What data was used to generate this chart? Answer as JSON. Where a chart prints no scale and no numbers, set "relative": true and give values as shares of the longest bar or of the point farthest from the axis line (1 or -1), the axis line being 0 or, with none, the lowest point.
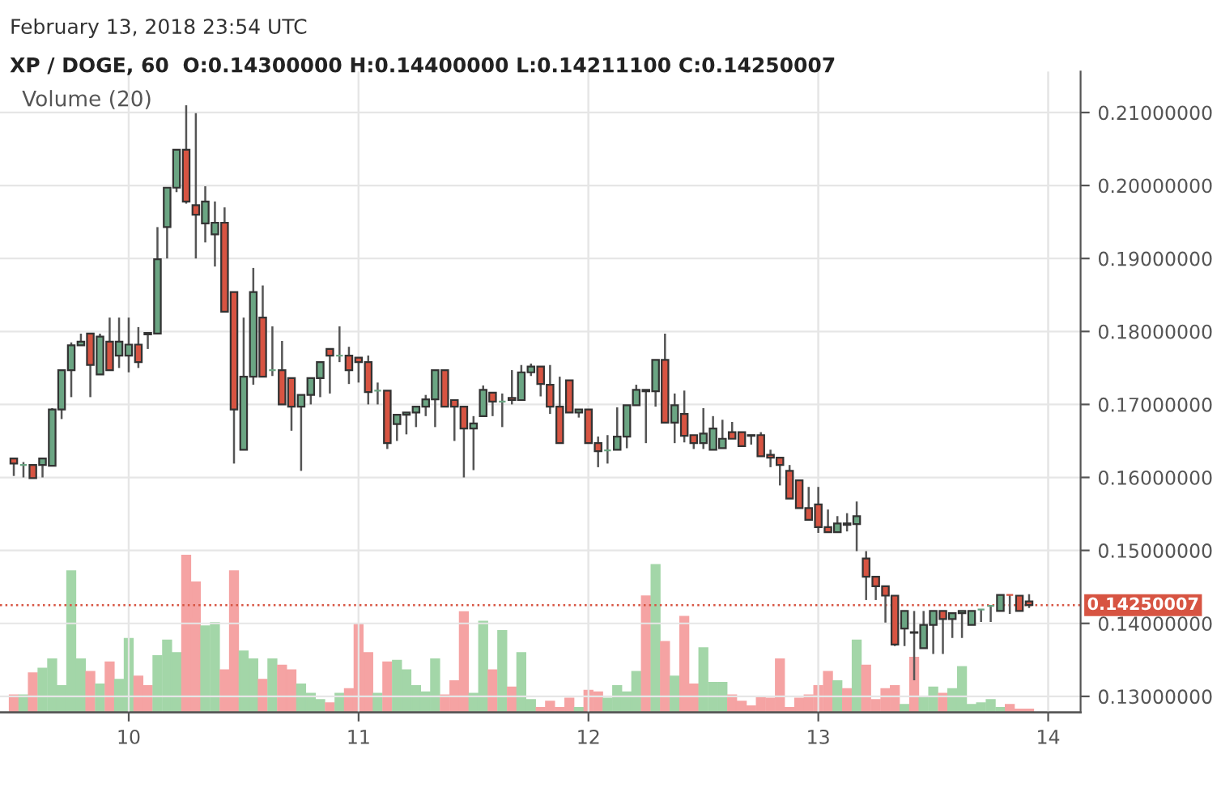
{
  "chart_data": [
    {
      "type": "candlestick",
      "title": "XP / DOGE, 60",
      "subtitle": "O:0.14300000 H:0.14400000 L:0.14211100 C:0.14250007",
      "annotations": [
        "February 13, 2018 23:54 UTC"
      ],
      "x": [
        9.5,
        9.542,
        9.583,
        9.625,
        9.667,
        9.708,
        9.75,
        9.792,
        9.833,
        9.875,
        9.917,
        9.958,
        10,
        10.042,
        10.083,
        10.125,
        10.167,
        10.208,
        10.25,
        10.292,
        10.333,
        10.375,
        10.417,
        10.458,
        10.5,
        10.542,
        10.583,
        10.625,
        10.667,
        10.708,
        10.75,
        10.792,
        10.833,
        10.875,
        10.917,
        10.958,
        11,
        11.042,
        11.083,
        11.125,
        11.167,
        11.208,
        11.25,
        11.292,
        11.333,
        11.375,
        11.417,
        11.458,
        11.5,
        11.542,
        11.583,
        11.625,
        11.667,
        11.708,
        11.75,
        11.792,
        11.833,
        11.875,
        11.917,
        11.958,
        12,
        12.042,
        12.083,
        12.125,
        12.167,
        12.208,
        12.25,
        12.292,
        12.333,
        12.375,
        12.417,
        12.458,
        12.5,
        12.542,
        12.583,
        12.625,
        12.667,
        12.708,
        12.75,
        12.792,
        12.833,
        12.875,
        12.917,
        12.958,
        13,
        13.042,
        13.083,
        13.125,
        13.167,
        13.208,
        13.25,
        13.292,
        13.333,
        13.375,
        13.417,
        13.458,
        13.5,
        13.542,
        13.583,
        13.625,
        13.667,
        13.708,
        13.75,
        13.792,
        13.833,
        13.875,
        13.917
      ],
      "ohlc": [
        [
          0.1626,
          0.1626,
          0.1602,
          0.1619
        ],
        [
          0.1617,
          0.1621,
          0.16,
          0.1617
        ],
        [
          0.1617,
          0.1617,
          0.1599,
          0.1599
        ],
        [
          0.1617,
          0.1626,
          0.16,
          0.1626
        ],
        [
          0.1616,
          0.1695,
          0.1616,
          0.1693
        ],
        [
          0.1693,
          0.1747,
          0.168,
          0.1747
        ],
        [
          0.1747,
          0.1785,
          0.171,
          0.1781
        ],
        [
          0.1781,
          0.1797,
          0.1781,
          0.1786
        ],
        [
          0.1797,
          0.1797,
          0.171,
          0.1754
        ],
        [
          0.1741,
          0.1797,
          0.1741,
          0.1793
        ],
        [
          0.1786,
          0.1819,
          0.1747,
          0.1747
        ],
        [
          0.1767,
          0.1819,
          0.175,
          0.1786
        ],
        [
          0.1767,
          0.1819,
          0.1744,
          0.1782
        ],
        [
          0.1782,
          0.1806,
          0.175,
          0.1758
        ],
        [
          0.1798,
          0.1798,
          0.1776,
          0.1796
        ],
        [
          0.1797,
          0.1943,
          0.1797,
          0.1899
        ],
        [
          0.1943,
          0.1997,
          0.19,
          0.1997
        ],
        [
          0.1997,
          0.2049,
          0.1991,
          0.2049
        ],
        [
          0.2049,
          0.211,
          0.1975,
          0.1978
        ],
        [
          0.1973,
          0.2099,
          0.19,
          0.196
        ],
        [
          0.1948,
          0.1999,
          0.1922,
          0.1978
        ],
        [
          0.1933,
          0.1978,
          0.1889,
          0.1949
        ],
        [
          0.1949,
          0.197,
          0.1827,
          0.1827
        ],
        [
          0.1854,
          0.1854,
          0.1619,
          0.1693
        ],
        [
          0.1638,
          0.1819,
          0.1638,
          0.1738
        ],
        [
          0.1738,
          0.1887,
          0.1727,
          0.1854
        ],
        [
          0.1819,
          0.1863,
          0.1738,
          0.1738
        ],
        [
          0.1747,
          0.1807,
          0.1739,
          0.1747
        ],
        [
          0.1747,
          0.1787,
          0.17,
          0.17
        ],
        [
          0.1736,
          0.1737,
          0.1664,
          0.1697
        ],
        [
          0.1697,
          0.1713,
          0.1609,
          0.1713
        ],
        [
          0.1713,
          0.1736,
          0.17,
          0.1736
        ],
        [
          0.1736,
          0.1758,
          0.171,
          0.1758
        ],
        [
          0.1776,
          0.1776,
          0.1715,
          0.1767
        ],
        [
          0.1767,
          0.1807,
          0.1758,
          0.1767
        ],
        [
          0.1767,
          0.1779,
          0.1728,
          0.1747
        ],
        [
          0.1764,
          0.1764,
          0.173,
          0.1758
        ],
        [
          0.1758,
          0.1767,
          0.17,
          0.1717
        ],
        [
          0.1719,
          0.173,
          0.17,
          0.1719
        ],
        [
          0.1719,
          0.1719,
          0.1639,
          0.1647
        ],
        [
          0.1673,
          0.1686,
          0.165,
          0.1686
        ],
        [
          0.1686,
          0.1689,
          0.1659,
          0.1689
        ],
        [
          0.1689,
          0.1697,
          0.1669,
          0.1697
        ],
        [
          0.1697,
          0.1713,
          0.1684,
          0.1707
        ],
        [
          0.1707,
          0.1747,
          0.1669,
          0.1747
        ],
        [
          0.1747,
          0.1747,
          0.1697,
          0.1697
        ],
        [
          0.1706,
          0.1706,
          0.165,
          0.1697
        ],
        [
          0.1697,
          0.1697,
          0.16,
          0.1667
        ],
        [
          0.1667,
          0.1684,
          0.161,
          0.1674
        ],
        [
          0.1684,
          0.1726,
          0.1684,
          0.172
        ],
        [
          0.1716,
          0.1716,
          0.1684,
          0.1704
        ],
        [
          0.1704,
          0.1715,
          0.1669,
          0.1704
        ],
        [
          0.1709,
          0.1747,
          0.17,
          0.1706
        ],
        [
          0.1706,
          0.1754,
          0.1706,
          0.1744
        ],
        [
          0.1744,
          0.1756,
          0.1739,
          0.1752
        ],
        [
          0.1752,
          0.1752,
          0.1711,
          0.1728
        ],
        [
          0.1727,
          0.1754,
          0.1687,
          0.1697
        ],
        [
          0.1697,
          0.1738,
          0.1647,
          0.1647
        ],
        [
          0.1733,
          0.1733,
          0.1689,
          0.1689
        ],
        [
          0.1689,
          0.1693,
          0.1682,
          0.1693
        ],
        [
          0.1693,
          0.1693,
          0.1647,
          0.1647
        ],
        [
          0.1647,
          0.1656,
          0.1614,
          0.1636
        ],
        [
          0.1637,
          0.1658,
          0.1619,
          0.1637
        ],
        [
          0.1638,
          0.1696,
          0.1638,
          0.1656
        ],
        [
          0.1656,
          0.1699,
          0.164,
          0.1699
        ],
        [
          0.1699,
          0.1727,
          0.1699,
          0.172
        ],
        [
          0.172,
          0.172,
          0.1647,
          0.1718
        ],
        [
          0.1718,
          0.1761,
          0.1697,
          0.1761
        ],
        [
          0.1761,
          0.1797,
          0.1675,
          0.1675
        ],
        [
          0.1675,
          0.1715,
          0.1647,
          0.1699
        ],
        [
          0.1687,
          0.1719,
          0.1648,
          0.1657
        ],
        [
          0.1658,
          0.1658,
          0.1639,
          0.1647
        ],
        [
          0.1647,
          0.1695,
          0.1639,
          0.166
        ],
        [
          0.1638,
          0.1684,
          0.1638,
          0.1667
        ],
        [
          0.164,
          0.1679,
          0.164,
          0.1653
        ],
        [
          0.1662,
          0.1676,
          0.1653,
          0.1653
        ],
        [
          0.1662,
          0.1662,
          0.1643,
          0.1643
        ],
        [
          0.1658,
          0.1658,
          0.1645,
          0.1657
        ],
        [
          0.1658,
          0.1662,
          0.1629,
          0.1629
        ],
        [
          0.1631,
          0.1638,
          0.1614,
          0.1627
        ],
        [
          0.1627,
          0.1627,
          0.1589,
          0.1617
        ],
        [
          0.1609,
          0.1617,
          0.1571,
          0.1571
        ],
        [
          0.1596,
          0.1596,
          0.1558,
          0.1558
        ],
        [
          0.1558,
          0.1587,
          0.1542,
          0.1542
        ],
        [
          0.1563,
          0.1587,
          0.1524,
          0.1532
        ],
        [
          0.1532,
          0.1556,
          0.1525,
          0.1525
        ],
        [
          0.1525,
          0.1547,
          0.1525,
          0.1537
        ],
        [
          0.1537,
          0.1551,
          0.1526,
          0.1535
        ],
        [
          0.1536,
          0.1567,
          0.1499,
          0.1547
        ],
        [
          0.1489,
          0.1499,
          0.1432,
          0.1464
        ],
        [
          0.1464,
          0.1464,
          0.1432,
          0.1451
        ],
        [
          0.1451,
          0.1451,
          0.1401,
          0.1438
        ],
        [
          0.1438,
          0.1438,
          0.1369,
          0.1371
        ],
        [
          0.1393,
          0.1417,
          0.1369,
          0.1417
        ],
        [
          0.1388,
          0.1417,
          0.1322,
          0.1387
        ],
        [
          0.1366,
          0.1417,
          0.1366,
          0.1398
        ],
        [
          0.1398,
          0.1417,
          0.1358,
          0.1417
        ],
        [
          0.1417,
          0.1417,
          0.1358,
          0.1406
        ],
        [
          0.1406,
          0.1414,
          0.138,
          0.1414
        ],
        [
          0.1414,
          0.1417,
          0.138,
          0.1417
        ],
        [
          0.1398,
          0.1417,
          0.1398,
          0.1417
        ],
        [
          0.1419,
          0.1419,
          0.1402,
          0.1419
        ],
        [
          0.1424,
          0.1424,
          0.1402,
          0.1424
        ],
        [
          0.1417,
          0.1439,
          0.1417,
          0.1439
        ],
        [
          0.1439,
          0.1439,
          0.1413,
          0.1439
        ],
        [
          0.1438,
          0.1438,
          0.1417,
          0.1417
        ],
        [
          0.143,
          0.144,
          0.14211,
          0.1425
        ]
      ],
      "colors": [
        "#d75442",
        "#6ba583",
        "#d75442",
        "#6ba583",
        "#6ba583",
        "#6ba583",
        "#6ba583",
        "#6ba583",
        "#d75442",
        "#6ba583",
        "#d75442",
        "#6ba583",
        "#6ba583",
        "#d75442",
        "#d75442",
        "#6ba583",
        "#6ba583",
        "#6ba583",
        "#d75442",
        "#d75442",
        "#6ba583",
        "#6ba583",
        "#d75442",
        "#d75442",
        "#6ba583",
        "#6ba583",
        "#d75442",
        "#6ba583",
        "#d75442",
        "#d75442",
        "#6ba583",
        "#6ba583",
        "#6ba583",
        "#d75442",
        "#6ba583",
        "#d75442",
        "#d75442",
        "#d75442",
        "#6ba583",
        "#d75442",
        "#6ba583",
        "#6ba583",
        "#6ba583",
        "#6ba583",
        "#6ba583",
        "#d75442",
        "#d75442",
        "#d75442",
        "#6ba583",
        "#6ba583",
        "#d75442",
        "#6ba583",
        "#d75442",
        "#6ba583",
        "#6ba583",
        "#d75442",
        "#d75442",
        "#d75442",
        "#d75442",
        "#6ba583",
        "#d75442",
        "#d75442",
        "#6ba583",
        "#6ba583",
        "#6ba583",
        "#6ba583",
        "#d75442",
        "#6ba583",
        "#d75442",
        "#6ba583",
        "#d75442",
        "#d75442",
        "#6ba583",
        "#6ba583",
        "#6ba583",
        "#d75442",
        "#d75442",
        "#d75442",
        "#d75442",
        "#d75442",
        "#d75442",
        "#d75442",
        "#d75442",
        "#d75442",
        "#d75442",
        "#d75442",
        "#6ba583",
        "#d75442",
        "#6ba583",
        "#d75442",
        "#d75442",
        "#d75442",
        "#d75442",
        "#6ba583",
        "#d75442",
        "#6ba583",
        "#6ba583",
        "#d75442",
        "#6ba583",
        "#6ba583",
        "#6ba583",
        "#6ba583",
        "#6ba583",
        "#6ba583",
        "#d75442",
        "#d75442",
        "#d75442"
      ],
      "xlim": [
        9.44,
        14.141
      ],
      "xticks": [
        10,
        11,
        12,
        13,
        14
      ],
      "ylim": [
        0.1278,
        0.2156
      ],
      "yticks": [
        {
          "value": 0.13,
          "label": "0.13000000"
        },
        {
          "value": 0.14,
          "label": "0.14000000"
        },
        {
          "value": 0.15,
          "label": "0.15000000"
        },
        {
          "value": 0.16,
          "label": "0.16000000"
        },
        {
          "value": 0.17,
          "label": "0.17000000"
        },
        {
          "value": 0.18,
          "label": "0.18000000"
        },
        {
          "value": 0.19,
          "label": "0.19000000"
        },
        {
          "value": 0.2,
          "label": "0.20000000"
        },
        {
          "value": 0.21,
          "label": "0.21000000"
        }
      ],
      "grid": true,
      "tick_labels": "y",
      "ref_lines": [
        {
          "axis": "y",
          "value": 0.14250007,
          "label": "0.14250007",
          "color": "#d75442",
          "line_style": "dotted"
        }
      ]
    },
    {
      "type": "bar",
      "relative": true,
      "title": "Volume (20)",
      "xlim": [
        9.44,
        14.141
      ],
      "xticks": [
        10,
        11,
        12,
        13,
        14
      ],
      "grid": "x",
      "tick_labels": "x",
      "x": [
        9.5,
        9.542,
        9.583,
        9.625,
        9.667,
        9.708,
        9.75,
        9.792,
        9.833,
        9.875,
        9.917,
        9.958,
        10,
        10.042,
        10.083,
        10.125,
        10.167,
        10.208,
        10.25,
        10.292,
        10.333,
        10.375,
        10.417,
        10.458,
        10.5,
        10.542,
        10.583,
        10.625,
        10.667,
        10.708,
        10.75,
        10.792,
        10.833,
        10.875,
        10.917,
        10.958,
        11,
        11.042,
        11.083,
        11.125,
        11.167,
        11.208,
        11.25,
        11.292,
        11.333,
        11.375,
        11.417,
        11.458,
        11.5,
        11.542,
        11.583,
        11.625,
        11.667,
        11.708,
        11.75,
        11.792,
        11.833,
        11.875,
        11.917,
        11.958,
        12,
        12.042,
        12.083,
        12.125,
        12.167,
        12.208,
        12.25,
        12.292,
        12.333,
        12.375,
        12.417,
        12.458,
        12.5,
        12.542,
        12.583,
        12.625,
        12.667,
        12.708,
        12.75,
        12.792,
        12.833,
        12.875,
        12.917,
        12.958,
        13,
        13.042,
        13.083,
        13.125,
        13.167,
        13.208,
        13.25,
        13.292,
        13.333,
        13.375,
        13.417,
        13.458,
        13.5,
        13.542,
        13.583,
        13.625,
        13.667,
        13.708,
        13.75,
        13.792,
        13.833,
        13.875,
        13.917
      ],
      "values": [
        0.11,
        0.11,
        0.25,
        0.28,
        0.34,
        0.17,
        0.9,
        0.34,
        0.26,
        0.18,
        0.32,
        0.21,
        0.47,
        0.23,
        0.17,
        0.36,
        0.46,
        0.38,
        1,
        0.83,
        0.55,
        0.57,
        0.27,
        0.9,
        0.39,
        0.34,
        0.21,
        0.34,
        0.3,
        0.27,
        0.18,
        0.12,
        0.08,
        0.06,
        0.12,
        0.15,
        0.56,
        0.38,
        0.12,
        0.32,
        0.33,
        0.27,
        0.17,
        0.13,
        0.34,
        0.11,
        0.2,
        0.64,
        0.12,
        0.58,
        0.27,
        0.52,
        0.16,
        0.38,
        0.08,
        0.03,
        0.07,
        0.03,
        0.09,
        0.03,
        0.14,
        0.13,
        0.09,
        0.17,
        0.13,
        0.26,
        0.74,
        0.94,
        0.45,
        0.23,
        0.61,
        0.18,
        0.41,
        0.19,
        0.19,
        0.11,
        0.07,
        0.04,
        0.1,
        0.09,
        0.34,
        0.03,
        0.09,
        0.11,
        0.17,
        0.26,
        0.2,
        0.15,
        0.46,
        0.3,
        0.08,
        0.15,
        0.17,
        0.05,
        0.35,
        0.1,
        0.16,
        0.12,
        0.15,
        0.29,
        0.05,
        0.06,
        0.08,
        0.03,
        0.05,
        0.02,
        0.02
      ],
      "colors": [
        "#f5a3a3",
        "#a3d6a8",
        "#f5a3a3",
        "#a3d6a8",
        "#a3d6a8",
        "#a3d6a8",
        "#a3d6a8",
        "#a3d6a8",
        "#f5a3a3",
        "#a3d6a8",
        "#f5a3a3",
        "#a3d6a8",
        "#a3d6a8",
        "#f5a3a3",
        "#f5a3a3",
        "#a3d6a8",
        "#a3d6a8",
        "#a3d6a8",
        "#f5a3a3",
        "#f5a3a3",
        "#a3d6a8",
        "#a3d6a8",
        "#f5a3a3",
        "#f5a3a3",
        "#a3d6a8",
        "#a3d6a8",
        "#f5a3a3",
        "#a3d6a8",
        "#f5a3a3",
        "#f5a3a3",
        "#a3d6a8",
        "#a3d6a8",
        "#a3d6a8",
        "#f5a3a3",
        "#a3d6a8",
        "#f5a3a3",
        "#f5a3a3",
        "#f5a3a3",
        "#a3d6a8",
        "#f5a3a3",
        "#a3d6a8",
        "#a3d6a8",
        "#a3d6a8",
        "#a3d6a8",
        "#a3d6a8",
        "#f5a3a3",
        "#f5a3a3",
        "#f5a3a3",
        "#a3d6a8",
        "#a3d6a8",
        "#f5a3a3",
        "#a3d6a8",
        "#f5a3a3",
        "#a3d6a8",
        "#a3d6a8",
        "#f5a3a3",
        "#f5a3a3",
        "#f5a3a3",
        "#f5a3a3",
        "#a3d6a8",
        "#f5a3a3",
        "#f5a3a3",
        "#a3d6a8",
        "#a3d6a8",
        "#a3d6a8",
        "#a3d6a8",
        "#f5a3a3",
        "#a3d6a8",
        "#f5a3a3",
        "#a3d6a8",
        "#f5a3a3",
        "#f5a3a3",
        "#a3d6a8",
        "#a3d6a8",
        "#a3d6a8",
        "#f5a3a3",
        "#f5a3a3",
        "#f5a3a3",
        "#f5a3a3",
        "#f5a3a3",
        "#f5a3a3",
        "#f5a3a3",
        "#f5a3a3",
        "#f5a3a3",
        "#f5a3a3",
        "#f5a3a3",
        "#a3d6a8",
        "#f5a3a3",
        "#a3d6a8",
        "#f5a3a3",
        "#f5a3a3",
        "#f5a3a3",
        "#f5a3a3",
        "#a3d6a8",
        "#f5a3a3",
        "#a3d6a8",
        "#a3d6a8",
        "#f5a3a3",
        "#a3d6a8",
        "#a3d6a8",
        "#a3d6a8",
        "#a3d6a8",
        "#a3d6a8",
        "#a3d6a8",
        "#f5a3a3",
        "#f5a3a3",
        "#f5a3a3"
      ]
    }
  ]
}
